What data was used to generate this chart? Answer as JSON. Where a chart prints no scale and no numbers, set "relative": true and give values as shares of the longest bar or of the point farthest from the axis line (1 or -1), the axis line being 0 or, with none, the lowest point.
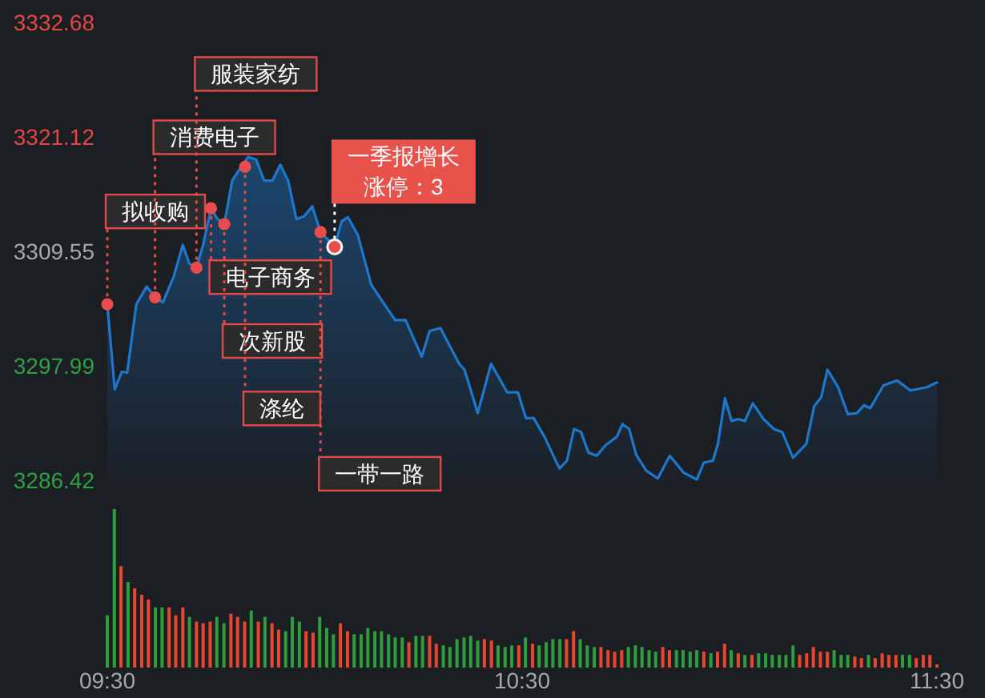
{
  "chart_data": [
    {
      "type": "area",
      "tick_labels": "y",
      "xlim": [
        9.5,
        11.5
      ],
      "ylim": [
        3286.42,
        3332.68
      ],
      "yticks": [
        3286.42,
        3297.99,
        3309.55,
        3321.12,
        3332.68
      ],
      "grid": false,
      "x": [
        9.5,
        9.518,
        9.535,
        9.548,
        9.57,
        9.595,
        9.615,
        9.634,
        9.66,
        9.682,
        9.698,
        9.715,
        9.731,
        9.75,
        9.766,
        9.782,
        9.801,
        9.821,
        9.84,
        9.859,
        9.878,
        9.898,
        9.917,
        9.936,
        9.956,
        9.975,
        9.994,
        10.014,
        10.033,
        10.048,
        10.065,
        10.08,
        10.104,
        10.136,
        10.168,
        10.194,
        10.219,
        10.258,
        10.277,
        10.303,
        10.348,
        10.361,
        10.393,
        10.425,
        10.464,
        10.49,
        10.509,
        10.528,
        10.554,
        10.59,
        10.608,
        10.625,
        10.642,
        10.66,
        10.68,
        10.702,
        10.728,
        10.742,
        10.758,
        10.775,
        10.799,
        10.827,
        10.856,
        10.889,
        10.921,
        10.938,
        10.96,
        10.972,
        10.989,
        11.005,
        11.021,
        11.037,
        11.056,
        11.082,
        11.107,
        11.127,
        11.153,
        11.185,
        11.204,
        11.221,
        11.236,
        11.262,
        11.285,
        11.307,
        11.324,
        11.339,
        11.371,
        11.404,
        11.436,
        11.474,
        11.5
      ],
      "series": [
        {
          "color": "#1d78cc",
          "values": [
            3304.2,
            3295.6,
            3297.4,
            3297.3,
            3304.2,
            3306.0,
            3304.9,
            3304.4,
            3307.0,
            3310.2,
            3308.3,
            3307.9,
            3310.2,
            3313.9,
            3312.8,
            3312.3,
            3316.7,
            3318.0,
            3319.1,
            3318.8,
            3316.7,
            3316.7,
            3318.3,
            3316.7,
            3312.8,
            3313.1,
            3314.1,
            3311.5,
            3310.7,
            3310.0,
            3312.6,
            3313.0,
            3311.2,
            3306.2,
            3304.2,
            3302.6,
            3302.6,
            3298.9,
            3301.5,
            3301.8,
            3298.2,
            3297.6,
            3293.2,
            3298.2,
            3295.3,
            3295.3,
            3292.7,
            3292.7,
            3290.8,
            3287.6,
            3288.4,
            3291.6,
            3291.3,
            3289.2,
            3288.9,
            3290.0,
            3290.8,
            3292.1,
            3291.6,
            3289.0,
            3287.4,
            3286.6,
            3288.9,
            3287.2,
            3286.5,
            3288.2,
            3288.4,
            3290.1,
            3294.7,
            3292.4,
            3292.6,
            3292.4,
            3294.2,
            3292.6,
            3291.6,
            3291.3,
            3288.7,
            3290.1,
            3293.9,
            3294.8,
            3297.6,
            3295.8,
            3293.1,
            3293.2,
            3294.0,
            3293.7,
            3296.0,
            3296.5,
            3295.5,
            3295.8,
            3296.3
          ]
        }
      ],
      "annotations": [
        {
          "text": "拟收购",
          "x": 9.5,
          "y": 3304.2
        },
        {
          "text": "消费电子",
          "x": 9.615,
          "y": 3304.9
        },
        {
          "text": "服装家纺",
          "x": 9.715,
          "y": 3307.9
        },
        {
          "text": "电子商务",
          "x": 9.75,
          "y": 3313.9
        },
        {
          "text": "次新股",
          "x": 9.782,
          "y": 3312.3
        },
        {
          "text": "涤纶",
          "x": 9.832,
          "y": 3318.1
        },
        {
          "text": "一带一路",
          "x": 10.014,
          "y": 3311.5
        },
        {
          "text": "一季报增长涨停：3",
          "x": 10.048,
          "y": 3310.0
        }
      ]
    },
    {
      "type": "bar",
      "relative": true,
      "xlim": [
        9.5,
        11.5
      ],
      "xticks": [
        {
          "value": 9.5,
          "label": "09:30"
        },
        {
          "value": 10.5,
          "label": "10:30"
        },
        {
          "value": 11.5,
          "label": "11:30"
        }
      ],
      "x": [
        9.5,
        9.517,
        9.533,
        9.55,
        9.566,
        9.583,
        9.599,
        9.616,
        9.632,
        9.649,
        9.665,
        9.682,
        9.698,
        9.715,
        9.731,
        9.748,
        9.764,
        9.781,
        9.798,
        9.814,
        9.831,
        9.847,
        9.864,
        9.88,
        9.897,
        9.913,
        9.93,
        9.946,
        9.963,
        9.979,
        9.996,
        10.012,
        10.029,
        10.045,
        10.062,
        10.079,
        10.095,
        10.112,
        10.128,
        10.145,
        10.161,
        10.178,
        10.194,
        10.211,
        10.227,
        10.244,
        10.26,
        10.277,
        10.293,
        10.31,
        10.326,
        10.343,
        10.36,
        10.376,
        10.393,
        10.409,
        10.426,
        10.442,
        10.459,
        10.475,
        10.492,
        10.508,
        10.525,
        10.541,
        10.558,
        10.574,
        10.591,
        10.607,
        10.624,
        10.64,
        10.657,
        10.674,
        10.69,
        10.707,
        10.723,
        10.74,
        10.756,
        10.773,
        10.789,
        10.806,
        10.822,
        10.839,
        10.855,
        10.872,
        10.888,
        10.905,
        10.921,
        10.938,
        10.955,
        10.971,
        10.988,
        11.004,
        11.021,
        11.037,
        11.054,
        11.07,
        11.087,
        11.103,
        11.12,
        11.136,
        11.153,
        11.169,
        11.186,
        11.202,
        11.219,
        11.236,
        11.252,
        11.269,
        11.285,
        11.302,
        11.318,
        11.335,
        11.351,
        11.368,
        11.384,
        11.401,
        11.417,
        11.434,
        11.45,
        11.467,
        11.483,
        11.5
      ],
      "values": [
        0.33,
        1,
        0.64,
        0.54,
        0.5,
        0.46,
        0.43,
        0.38,
        0.38,
        0.38,
        0.33,
        0.38,
        0.32,
        0.29,
        0.28,
        0.29,
        0.32,
        0.28,
        0.34,
        0.32,
        0.29,
        0.36,
        0.29,
        0.32,
        0.28,
        0.24,
        0.23,
        0.32,
        0.29,
        0.23,
        0.22,
        0.32,
        0.25,
        0.21,
        0.28,
        0.23,
        0.21,
        0.21,
        0.25,
        0.23,
        0.23,
        0.21,
        0.19,
        0.19,
        0.16,
        0.2,
        0.2,
        0.2,
        0.15,
        0.14,
        0.13,
        0.18,
        0.19,
        0.2,
        0.17,
        0.18,
        0.17,
        0.14,
        0.13,
        0.14,
        0.14,
        0.19,
        0.15,
        0.14,
        0.16,
        0.18,
        0.18,
        0.18,
        0.23,
        0.18,
        0.14,
        0.13,
        0.13,
        0.11,
        0.1,
        0.11,
        0.13,
        0.14,
        0.13,
        0.11,
        0.1,
        0.13,
        0.11,
        0.11,
        0.11,
        0.1,
        0.11,
        0.1,
        0.09,
        0.1,
        0.15,
        0.11,
        0.09,
        0.08,
        0.08,
        0.09,
        0.09,
        0.08,
        0.08,
        0.08,
        0.14,
        0.08,
        0.09,
        0.13,
        0.1,
        0.1,
        0.11,
        0.08,
        0.08,
        0.07,
        0.06,
        0.08,
        0.06,
        0.09,
        0.08,
        0.08,
        0.08,
        0.08,
        0.06,
        0.08,
        0.08,
        0.02
      ],
      "colors": [
        "#2e9d3b",
        "#2e9d3b",
        "#e8472e",
        "#2e9d3b",
        "#e8472e",
        "#e8472e",
        "#e8472e",
        "#2e9d3b",
        "#2e9d3b",
        "#e8472e",
        "#e8472e",
        "#e8472e",
        "#2e9d3b",
        "#e8472e",
        "#e8472e",
        "#e8472e",
        "#2e9d3b",
        "#2e9d3b",
        "#e8472e",
        "#e8472e",
        "#e8472e",
        "#2e9d3b",
        "#e8472e",
        "#2e9d3b",
        "#e8472e",
        "#e8472e",
        "#2e9d3b",
        "#2e9d3b",
        "#2e9d3b",
        "#e8472e",
        "#e8472e",
        "#2e9d3b",
        "#2e9d3b",
        "#2e9d3b",
        "#e8472e",
        "#e8472e",
        "#2e9d3b",
        "#2e9d3b",
        "#2e9d3b",
        "#2e9d3b",
        "#2e9d3b",
        "#2e9d3b",
        "#2e9d3b",
        "#2e9d3b",
        "#e8472e",
        "#2e9d3b",
        "#2e9d3b",
        "#e8472e",
        "#e8472e",
        "#2e9d3b",
        "#2e9d3b",
        "#2e9d3b",
        "#2e9d3b",
        "#2e9d3b",
        "#2e9d3b",
        "#e8472e",
        "#e8472e",
        "#2e9d3b",
        "#2e9d3b",
        "#2e9d3b",
        "#e8472e",
        "#2e9d3b",
        "#e8472e",
        "#2e9d3b",
        "#2e9d3b",
        "#2e9d3b",
        "#2e9d3b",
        "#e8472e",
        "#e8472e",
        "#2e9d3b",
        "#2e9d3b",
        "#2e9d3b",
        "#e8472e",
        "#e8472e",
        "#e8472e",
        "#e8472e",
        "#2e9d3b",
        "#2e9d3b",
        "#2e9d3b",
        "#2e9d3b",
        "#2e9d3b",
        "#e8472e",
        "#e8472e",
        "#2e9d3b",
        "#2e9d3b",
        "#2e9d3b",
        "#2e9d3b",
        "#e8472e",
        "#2e9d3b",
        "#e8472e",
        "#e8472e",
        "#2e9d3b",
        "#e8472e",
        "#2e9d3b",
        "#e8472e",
        "#2e9d3b",
        "#2e9d3b",
        "#2e9d3b",
        "#2e9d3b",
        "#2e9d3b",
        "#2e9d3b",
        "#e8472e",
        "#e8472e",
        "#e8472e",
        "#e8472e",
        "#e8472e",
        "#2e9d3b",
        "#2e9d3b",
        "#2e9d3b",
        "#e8472e",
        "#e8472e",
        "#2e9d3b",
        "#e8472e",
        "#e8472e",
        "#e8472e",
        "#e8472e",
        "#2e9d3b",
        "#2e9d3b",
        "#e8472e",
        "#e8472e",
        "#e8472e",
        "#e8472e"
      ]
    }
  ]
}
